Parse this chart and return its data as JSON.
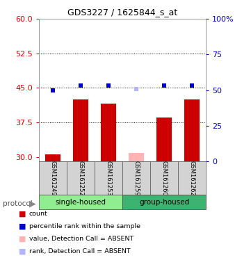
{
  "title": "GDS3227 / 1625844_s_at",
  "samples": [
    "GSM161249",
    "GSM161252",
    "GSM161253",
    "GSM161259",
    "GSM161260",
    "GSM161262"
  ],
  "group_labels": [
    "single-housed",
    "group-housed"
  ],
  "group_colors": [
    "#90ee90",
    "#3cb371"
  ],
  "bar_values": [
    30.5,
    42.5,
    41.5,
    30.8,
    38.5,
    42.5
  ],
  "bar_colors": [
    "#cc0000",
    "#cc0000",
    "#cc0000",
    "#ffb3b3",
    "#cc0000",
    "#cc0000"
  ],
  "rank_values": [
    50.0,
    53.0,
    53.0,
    51.0,
    53.0,
    53.0
  ],
  "rank_colors": [
    "#0000cc",
    "#0000cc",
    "#0000cc",
    "#b3b3ff",
    "#0000cc",
    "#0000cc"
  ],
  "ylim_left": [
    29.0,
    60.0
  ],
  "ylim_right": [
    0,
    100
  ],
  "yticks_left": [
    30,
    37.5,
    45,
    52.5,
    60
  ],
  "yticks_right": [
    0,
    25,
    50,
    75,
    100
  ],
  "ylabel_left_color": "#cc0000",
  "ylabel_right_color": "#0000cc",
  "bar_bottom": 29.0,
  "sample_bg_color": "#d3d3d3",
  "marker_size": 5,
  "legend_items": [
    {
      "color": "#cc0000",
      "label": "count"
    },
    {
      "color": "#0000cc",
      "label": "percentile rank within the sample"
    },
    {
      "color": "#ffb3b3",
      "label": "value, Detection Call = ABSENT"
    },
    {
      "color": "#b3b3ff",
      "label": "rank, Detection Call = ABSENT"
    }
  ]
}
